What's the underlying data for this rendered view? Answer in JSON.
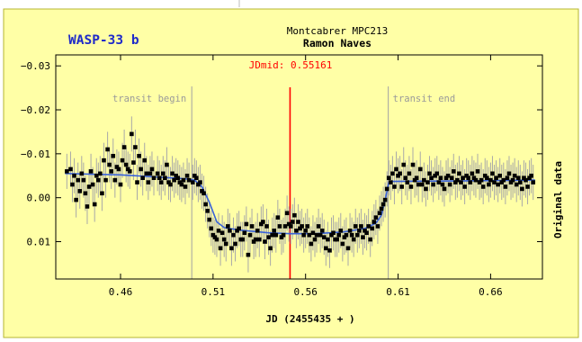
{
  "chart_data": {
    "type": "scatter",
    "planet_label": "WASP-33 b",
    "observatory": "Montcabrer MPC213",
    "observer": "Ramon Naves",
    "jd_mid_label": "JDmid: 0.55161",
    "transit_begin_label": "transit begin",
    "transit_end_label": "transit end",
    "xlabel": "JD (2455435 + )",
    "ylabel": "Original data",
    "xlim": [
      0.425,
      0.688
    ],
    "ylim": [
      0.0185,
      -0.0325
    ],
    "y_inverted": true,
    "x_ticks": [
      {
        "value": 0.46,
        "label": "0.46"
      },
      {
        "value": 0.51,
        "label": "0.51"
      },
      {
        "value": 0.56,
        "label": "0.56"
      },
      {
        "value": 0.61,
        "label": "0.61"
      },
      {
        "value": 0.66,
        "label": "0.66"
      }
    ],
    "y_ticks": [
      {
        "value": -0.03,
        "label": "−0.03"
      },
      {
        "value": -0.02,
        "label": "−0.02"
      },
      {
        "value": -0.01,
        "label": "−0.01"
      },
      {
        "value": 0.0,
        "label": "0.00"
      },
      {
        "value": 0.01,
        "label": "0.01"
      }
    ],
    "transit_begin_x": 0.4985,
    "transit_end_x": 0.6047,
    "jd_mid_x": 0.55161,
    "error_bar": 0.004,
    "points": [
      [
        0.431,
        -0.006
      ],
      [
        0.433,
        -0.0065
      ],
      [
        0.434,
        -0.003
      ],
      [
        0.435,
        -0.005
      ],
      [
        0.436,
        0.0005
      ],
      [
        0.437,
        -0.004
      ],
      [
        0.438,
        -0.0015
      ],
      [
        0.439,
        -0.0055
      ],
      [
        0.44,
        -0.004
      ],
      [
        0.441,
        -0.001
      ],
      [
        0.442,
        0.002
      ],
      [
        0.443,
        -0.0025
      ],
      [
        0.444,
        -0.006
      ],
      [
        0.445,
        -0.003
      ],
      [
        0.446,
        0.0015
      ],
      [
        0.447,
        -0.005
      ],
      [
        0.448,
        -0.004
      ],
      [
        0.449,
        -0.0055
      ],
      [
        0.45,
        -0.001
      ],
      [
        0.451,
        -0.0085
      ],
      [
        0.452,
        -0.004
      ],
      [
        0.453,
        -0.011
      ],
      [
        0.454,
        -0.0075
      ],
      [
        0.455,
        -0.006
      ],
      [
        0.456,
        -0.0095
      ],
      [
        0.457,
        -0.004
      ],
      [
        0.458,
        -0.007
      ],
      [
        0.459,
        -0.0065
      ],
      [
        0.46,
        -0.003
      ],
      [
        0.461,
        -0.0085
      ],
      [
        0.462,
        -0.0115
      ],
      [
        0.463,
        -0.0075
      ],
      [
        0.464,
        -0.0065
      ],
      [
        0.465,
        -0.006
      ],
      [
        0.466,
        -0.0145
      ],
      [
        0.467,
        -0.008
      ],
      [
        0.468,
        -0.0115
      ],
      [
        0.469,
        -0.0035
      ],
      [
        0.47,
        -0.0095
      ],
      [
        0.471,
        -0.0065
      ],
      [
        0.472,
        -0.0045
      ],
      [
        0.473,
        -0.0085
      ],
      [
        0.474,
        -0.0055
      ],
      [
        0.475,
        -0.0035
      ],
      [
        0.476,
        -0.0055
      ],
      [
        0.477,
        -0.0065
      ],
      [
        0.478,
        -0.0045
      ],
      [
        0.48,
        -0.0055
      ],
      [
        0.481,
        -0.0045
      ],
      [
        0.482,
        -0.0035
      ],
      [
        0.483,
        -0.0055
      ],
      [
        0.484,
        -0.0045
      ],
      [
        0.485,
        -0.0075
      ],
      [
        0.486,
        -0.0035
      ],
      [
        0.487,
        -0.003
      ],
      [
        0.488,
        -0.0055
      ],
      [
        0.489,
        -0.004
      ],
      [
        0.49,
        -0.005
      ],
      [
        0.491,
        -0.0045
      ],
      [
        0.492,
        -0.0035
      ],
      [
        0.493,
        -0.003
      ],
      [
        0.494,
        -0.004
      ],
      [
        0.495,
        -0.0025
      ],
      [
        0.496,
        -0.005
      ],
      [
        0.497,
        -0.004
      ],
      [
        0.499,
        -0.0035
      ],
      [
        0.5,
        -0.005
      ],
      [
        0.501,
        -0.0045
      ],
      [
        0.502,
        -0.003
      ],
      [
        0.503,
        -0.0035
      ],
      [
        0.504,
        -0.0015
      ],
      [
        0.505,
        -0.001
      ],
      [
        0.506,
        0.0015
      ],
      [
        0.507,
        0.003
      ],
      [
        0.508,
        0.005
      ],
      [
        0.509,
        0.007
      ],
      [
        0.51,
        0.0085
      ],
      [
        0.511,
        0.009
      ],
      [
        0.512,
        0.0095
      ],
      [
        0.513,
        0.0075
      ],
      [
        0.514,
        0.0115
      ],
      [
        0.515,
        0.008
      ],
      [
        0.516,
        0.0095
      ],
      [
        0.517,
        0.0105
      ],
      [
        0.518,
        0.0065
      ],
      [
        0.519,
        0.0075
      ],
      [
        0.52,
        0.0115
      ],
      [
        0.521,
        0.0085
      ],
      [
        0.522,
        0.0105
      ],
      [
        0.523,
        0.0075
      ],
      [
        0.524,
        0.007
      ],
      [
        0.525,
        0.0095
      ],
      [
        0.526,
        0.0095
      ],
      [
        0.527,
        0.008
      ],
      [
        0.528,
        0.006
      ],
      [
        0.529,
        0.013
      ],
      [
        0.53,
        0.0085
      ],
      [
        0.531,
        0.0065
      ],
      [
        0.532,
        0.01
      ],
      [
        0.533,
        0.0095
      ],
      [
        0.534,
        0.0075
      ],
      [
        0.535,
        0.0095
      ],
      [
        0.536,
        0.006
      ],
      [
        0.537,
        0.0055
      ],
      [
        0.538,
        0.01
      ],
      [
        0.539,
        0.0065
      ],
      [
        0.54,
        0.009
      ],
      [
        0.541,
        0.0115
      ],
      [
        0.542,
        0.0085
      ],
      [
        0.543,
        0.0075
      ],
      [
        0.544,
        0.0085
      ],
      [
        0.545,
        0.0045
      ],
      [
        0.546,
        0.0065
      ],
      [
        0.547,
        0.009
      ],
      [
        0.548,
        0.0085
      ],
      [
        0.549,
        0.0065
      ],
      [
        0.55,
        0.0035
      ],
      [
        0.551,
        0.006
      ],
      [
        0.552,
        0.0065
      ],
      [
        0.553,
        0.0055
      ],
      [
        0.554,
        0.004
      ],
      [
        0.555,
        0.0075
      ],
      [
        0.556,
        0.0055
      ],
      [
        0.557,
        0.007
      ],
      [
        0.558,
        0.0065
      ],
      [
        0.559,
        0.0085
      ],
      [
        0.56,
        0.0075
      ],
      [
        0.561,
        0.0065
      ],
      [
        0.562,
        0.0085
      ],
      [
        0.563,
        0.0105
      ],
      [
        0.564,
        0.008
      ],
      [
        0.565,
        0.0095
      ],
      [
        0.566,
        0.0085
      ],
      [
        0.567,
        0.0065
      ],
      [
        0.568,
        0.0085
      ],
      [
        0.569,
        0.0075
      ],
      [
        0.57,
        0.009
      ],
      [
        0.571,
        0.0115
      ],
      [
        0.572,
        0.0095
      ],
      [
        0.573,
        0.012
      ],
      [
        0.574,
        0.0085
      ],
      [
        0.575,
        0.008
      ],
      [
        0.576,
        0.0095
      ],
      [
        0.577,
        0.0095
      ],
      [
        0.578,
        0.0085
      ],
      [
        0.579,
        0.0075
      ],
      [
        0.58,
        0.0105
      ],
      [
        0.581,
        0.009
      ],
      [
        0.582,
        0.0085
      ],
      [
        0.583,
        0.0115
      ],
      [
        0.584,
        0.0075
      ],
      [
        0.585,
        0.0085
      ],
      [
        0.586,
        0.0095
      ],
      [
        0.587,
        0.0065
      ],
      [
        0.588,
        0.0085
      ],
      [
        0.589,
        0.0075
      ],
      [
        0.59,
        0.0065
      ],
      [
        0.591,
        0.009
      ],
      [
        0.592,
        0.0075
      ],
      [
        0.593,
        0.008
      ],
      [
        0.594,
        0.0065
      ],
      [
        0.595,
        0.0095
      ],
      [
        0.596,
        0.007
      ],
      [
        0.597,
        0.0055
      ],
      [
        0.598,
        0.0045
      ],
      [
        0.599,
        0.0065
      ],
      [
        0.6,
        0.0035
      ],
      [
        0.601,
        0.0025
      ],
      [
        0.602,
        0.0015
      ],
      [
        0.603,
        0.0005
      ],
      [
        0.604,
        -0.002
      ],
      [
        0.605,
        -0.0045
      ],
      [
        0.606,
        -0.0035
      ],
      [
        0.607,
        -0.0055
      ],
      [
        0.608,
        -0.0025
      ],
      [
        0.609,
        -0.0065
      ],
      [
        0.61,
        -0.005
      ],
      [
        0.611,
        -0.0055
      ],
      [
        0.612,
        -0.0025
      ],
      [
        0.613,
        -0.0075
      ],
      [
        0.614,
        -0.0045
      ],
      [
        0.615,
        -0.0035
      ],
      [
        0.616,
        -0.0055
      ],
      [
        0.617,
        -0.0025
      ],
      [
        0.618,
        -0.0075
      ],
      [
        0.619,
        -0.004
      ],
      [
        0.62,
        -0.0045
      ],
      [
        0.621,
        -0.003
      ],
      [
        0.622,
        -0.0065
      ],
      [
        0.623,
        -0.003
      ],
      [
        0.624,
        -0.004
      ],
      [
        0.625,
        -0.002
      ],
      [
        0.626,
        -0.0035
      ],
      [
        0.627,
        -0.0055
      ],
      [
        0.628,
        -0.0045
      ],
      [
        0.629,
        -0.003
      ],
      [
        0.63,
        -0.005
      ],
      [
        0.631,
        -0.0055
      ],
      [
        0.632,
        -0.0035
      ],
      [
        0.633,
        -0.0045
      ],
      [
        0.634,
        -0.003
      ],
      [
        0.635,
        -0.002
      ],
      [
        0.636,
        -0.0045
      ],
      [
        0.637,
        -0.005
      ],
      [
        0.638,
        -0.003
      ],
      [
        0.639,
        -0.0045
      ],
      [
        0.64,
        -0.006
      ],
      [
        0.641,
        -0.0035
      ],
      [
        0.642,
        -0.004
      ],
      [
        0.643,
        -0.0055
      ],
      [
        0.644,
        -0.0035
      ],
      [
        0.645,
        -0.0045
      ],
      [
        0.646,
        -0.0025
      ],
      [
        0.647,
        -0.005
      ],
      [
        0.648,
        -0.0045
      ],
      [
        0.649,
        -0.0035
      ],
      [
        0.65,
        -0.0055
      ],
      [
        0.651,
        -0.0045
      ],
      [
        0.652,
        -0.004
      ],
      [
        0.653,
        -0.006
      ],
      [
        0.654,
        -0.0035
      ],
      [
        0.655,
        -0.004
      ],
      [
        0.656,
        -0.0025
      ],
      [
        0.657,
        -0.005
      ],
      [
        0.658,
        -0.0045
      ],
      [
        0.659,
        -0.003
      ],
      [
        0.66,
        -0.004
      ],
      [
        0.661,
        -0.0055
      ],
      [
        0.662,
        -0.0035
      ],
      [
        0.663,
        -0.0045
      ],
      [
        0.664,
        -0.003
      ],
      [
        0.665,
        -0.005
      ],
      [
        0.666,
        -0.0035
      ],
      [
        0.667,
        -0.004
      ],
      [
        0.668,
        -0.0025
      ],
      [
        0.669,
        -0.0045
      ],
      [
        0.67,
        -0.0055
      ],
      [
        0.671,
        -0.0035
      ],
      [
        0.672,
        -0.004
      ],
      [
        0.673,
        -0.005
      ],
      [
        0.674,
        -0.003
      ],
      [
        0.675,
        -0.0045
      ],
      [
        0.676,
        -0.0035
      ],
      [
        0.677,
        -0.002
      ],
      [
        0.678,
        -0.0045
      ],
      [
        0.679,
        -0.004
      ],
      [
        0.68,
        -0.0025
      ],
      [
        0.681,
        -0.0045
      ],
      [
        0.682,
        -0.005
      ],
      [
        0.683,
        -0.0035
      ]
    ],
    "model": [
      [
        0.43,
        -0.0055
      ],
      [
        0.46,
        -0.0052
      ],
      [
        0.48,
        -0.0047
      ],
      [
        0.495,
        -0.0043
      ],
      [
        0.5,
        -0.004
      ],
      [
        0.504,
        -0.0025
      ],
      [
        0.508,
        0.001
      ],
      [
        0.512,
        0.0055
      ],
      [
        0.516,
        0.0068
      ],
      [
        0.525,
        0.0074
      ],
      [
        0.54,
        0.008
      ],
      [
        0.552,
        0.0082
      ],
      [
        0.565,
        0.0082
      ],
      [
        0.58,
        0.0078
      ],
      [
        0.592,
        0.007
      ],
      [
        0.598,
        0.0058
      ],
      [
        0.601,
        0.004
      ],
      [
        0.603,
        0.0005
      ],
      [
        0.605,
        -0.0035
      ],
      [
        0.607,
        -0.0037
      ],
      [
        0.64,
        -0.0038
      ],
      [
        0.684,
        -0.004
      ]
    ],
    "colors": {
      "background": "#ffffa6",
      "outer_border": "#b5b532",
      "planet_label": "#1f2ac9",
      "jd_mid": "#ff0000",
      "model_line": "#3a63d9",
      "transit_lines": "#a3a3a3",
      "transit_text": "#9a9a9a",
      "error_bars": "#a8a8a8",
      "points": "#000000",
      "axis": "#000000"
    }
  }
}
